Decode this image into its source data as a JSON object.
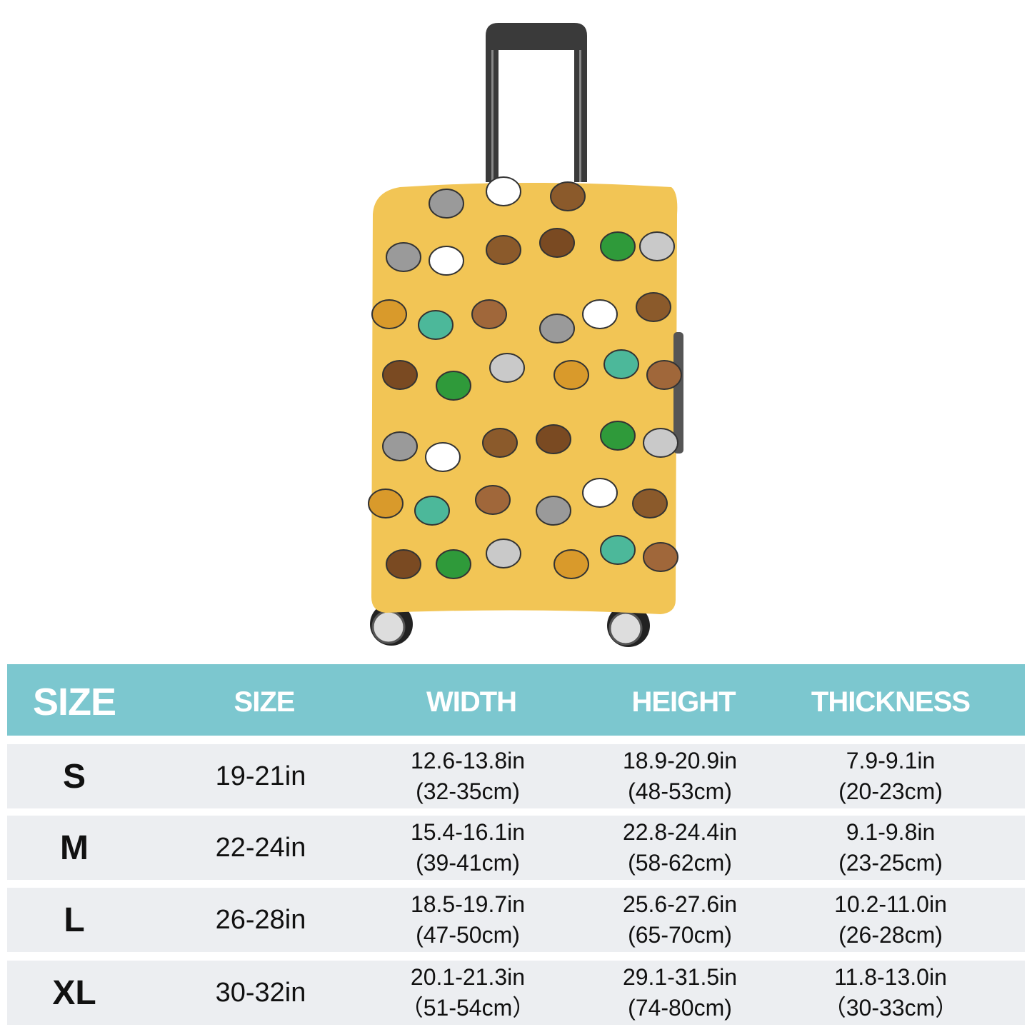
{
  "product": {
    "image": "luggage-cover-with-chinese-zodiac-animals-pattern",
    "colors": {
      "cover": "#f2c555",
      "header": "#7cc7cf",
      "row": "#eceef1",
      "handle": "#3a3a3a"
    }
  },
  "table": {
    "headers": [
      "SIZE",
      "SIZE",
      "WIDTH",
      "HEIGHT",
      "THICKNESS"
    ],
    "rows": [
      {
        "size": "S",
        "luggage": "19-21in",
        "width_in": "12.6-13.8in",
        "width_cm": "(32-35cm)",
        "height_in": "18.9-20.9in",
        "height_cm": "(48-53cm)",
        "thickness_in": "7.9-9.1in",
        "thickness_cm": "(20-23cm)"
      },
      {
        "size": "M",
        "luggage": "22-24in",
        "width_in": "15.4-16.1in",
        "width_cm": "(39-41cm)",
        "height_in": "22.8-24.4in",
        "height_cm": "(58-62cm)",
        "thickness_in": "9.1-9.8in",
        "thickness_cm": "(23-25cm)"
      },
      {
        "size": "L",
        "luggage": "26-28in",
        "width_in": "18.5-19.7in",
        "width_cm": "(47-50cm)",
        "height_in": "25.6-27.6in",
        "height_cm": "(65-70cm)",
        "thickness_in": "10.2-11.0in",
        "thickness_cm": "(26-28cm)"
      },
      {
        "size": "XL",
        "luggage": "30-32in",
        "width_in": "20.1-21.3in",
        "width_cm": "（51-54cm）",
        "height_in": "29.1-31.5in",
        "height_cm": "(74-80cm)",
        "thickness_in": "11.8-13.0in",
        "thickness_cm": "（30-33cm）"
      }
    ]
  }
}
